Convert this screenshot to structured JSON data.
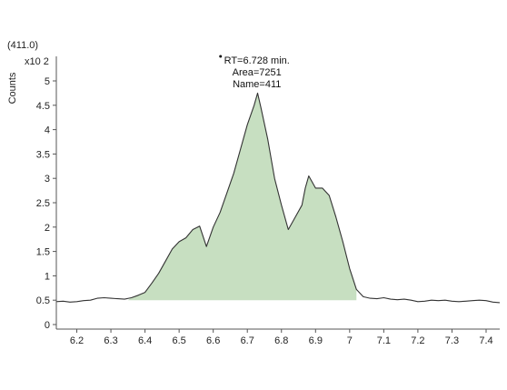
{
  "chart_data": {
    "type": "area",
    "title": "",
    "subtitle": "(411.0)",
    "ylabel": "Counts",
    "y_multiplier": "x10 2",
    "xlabel": "",
    "xlim": [
      6.14,
      7.44
    ],
    "ylim": [
      0,
      5.2
    ],
    "x_ticks": [
      "6.2",
      "6.3",
      "6.4",
      "6.5",
      "6.6",
      "6.7",
      "6.8",
      "6.9",
      "7",
      "7.1",
      "7.2",
      "7.3",
      "7.4"
    ],
    "y_ticks": [
      "0",
      "0.5",
      "1",
      "1.5",
      "2",
      "2.5",
      "3",
      "3.5",
      "4",
      "4.5",
      "5"
    ],
    "baseline": 0.5,
    "peak_integration_range": [
      6.35,
      7.02
    ],
    "fill_color": "#c7dfc1",
    "line_color": "#333333",
    "annotation": {
      "lines": [
        "RT=6.728 min.",
        "Area=7251",
        "Name=411"
      ],
      "x": 6.728,
      "y": 4.75
    },
    "series": [
      {
        "x": [
          6.14,
          6.16,
          6.18,
          6.2,
          6.22,
          6.24,
          6.26,
          6.28,
          6.3,
          6.32,
          6.34,
          6.36,
          6.38,
          6.4,
          6.42,
          6.44,
          6.46,
          6.48,
          6.5,
          6.52,
          6.54,
          6.56,
          6.58,
          6.6,
          6.62,
          6.64,
          6.66,
          6.68,
          6.7,
          6.72,
          6.73,
          6.74,
          6.76,
          6.78,
          6.8,
          6.82,
          6.84,
          6.86,
          6.87,
          6.88,
          6.9,
          6.92,
          6.94,
          6.96,
          6.98,
          7.0,
          7.02,
          7.04,
          7.06,
          7.08,
          7.1,
          7.12,
          7.14,
          7.16,
          7.18,
          7.2,
          7.22,
          7.24,
          7.26,
          7.28,
          7.3,
          7.32,
          7.34,
          7.36,
          7.38,
          7.4,
          7.42,
          7.44
        ],
        "y": [
          0.47,
          0.48,
          0.46,
          0.47,
          0.49,
          0.5,
          0.54,
          0.55,
          0.54,
          0.53,
          0.52,
          0.55,
          0.6,
          0.66,
          0.85,
          1.05,
          1.3,
          1.55,
          1.7,
          1.78,
          1.95,
          2.02,
          1.6,
          2.0,
          2.3,
          2.7,
          3.1,
          3.6,
          4.1,
          4.5,
          4.75,
          4.45,
          3.8,
          3.0,
          2.45,
          1.95,
          2.2,
          2.45,
          2.8,
          3.05,
          2.8,
          2.8,
          2.65,
          2.2,
          1.7,
          1.15,
          0.72,
          0.57,
          0.54,
          0.53,
          0.55,
          0.52,
          0.51,
          0.52,
          0.5,
          0.47,
          0.48,
          0.5,
          0.49,
          0.5,
          0.48,
          0.47,
          0.48,
          0.49,
          0.5,
          0.49,
          0.46,
          0.45
        ]
      }
    ]
  }
}
